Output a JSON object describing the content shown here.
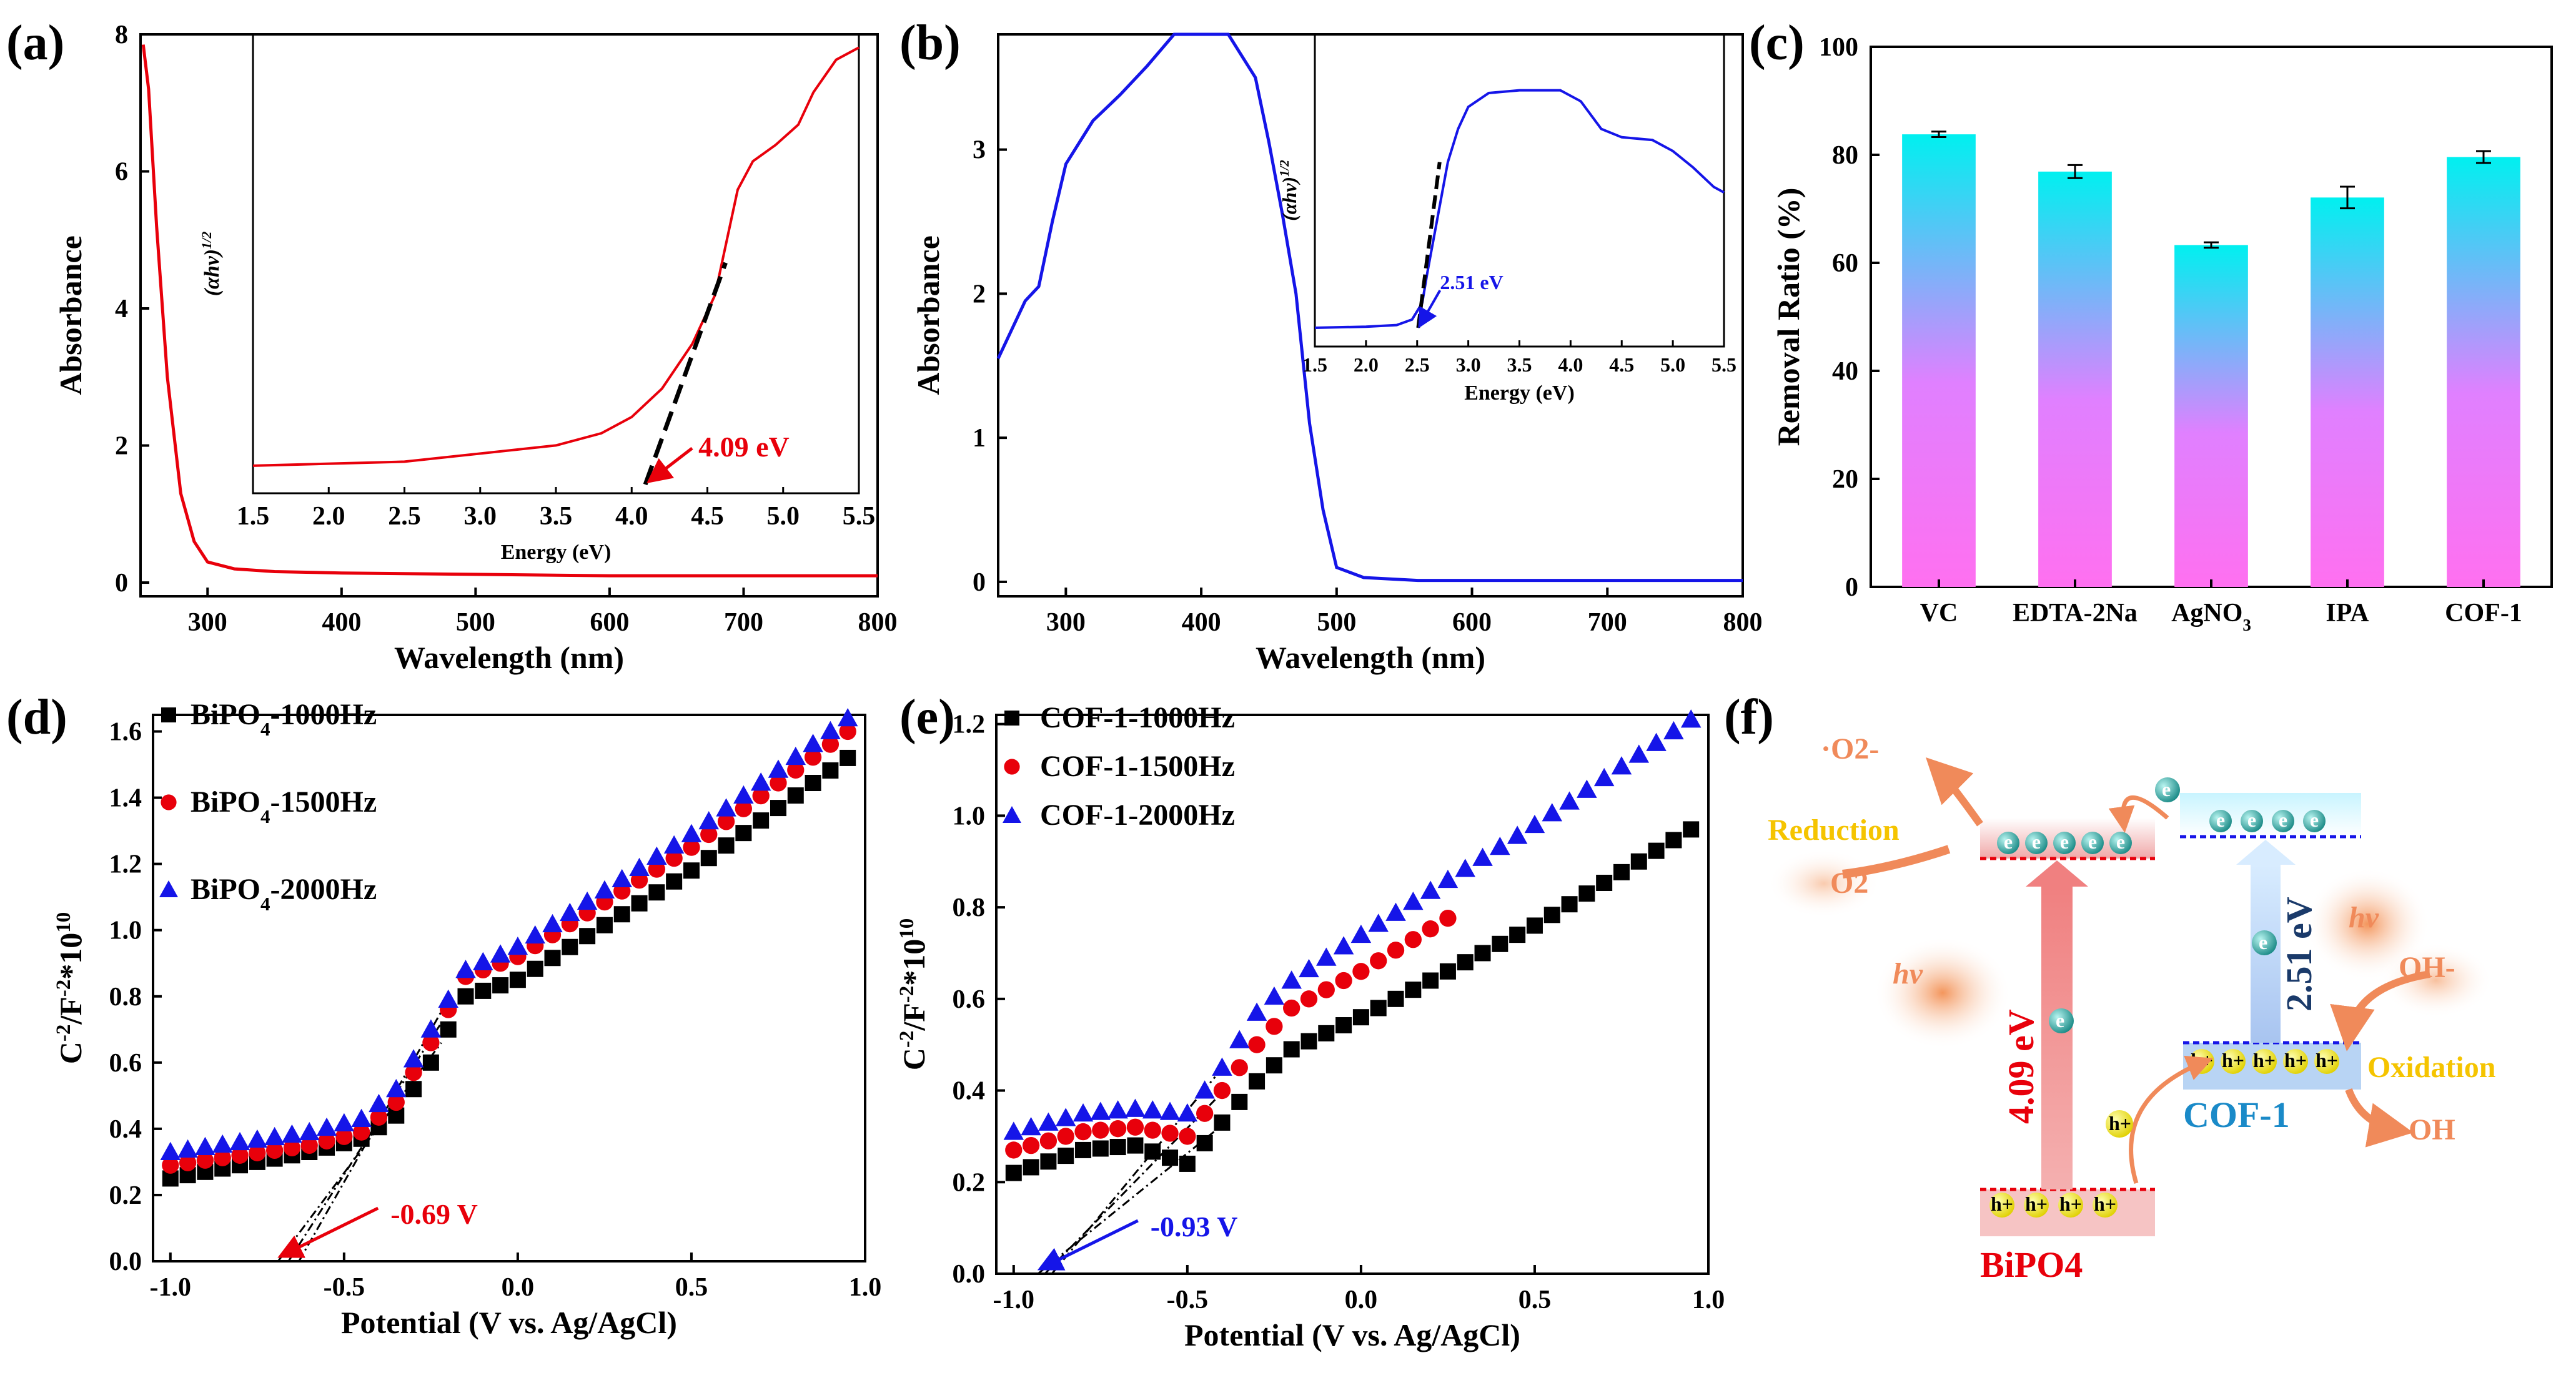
{
  "panel_labels": {
    "a": "(a)",
    "b": "(b)",
    "c": "(c)",
    "d": "(d)",
    "e": "(e)",
    "f": "(f)"
  },
  "chart_data": [
    {
      "id": "a",
      "type": "line",
      "xlabel": "Wavelength (nm)",
      "ylabel": "Absorbance",
      "xlim": [
        250,
        800
      ],
      "ylim": [
        -0.2,
        8
      ],
      "xticks": [
        "300",
        "400",
        "500",
        "600",
        "700",
        "800"
      ],
      "yticks": [
        "0",
        "2",
        "4",
        "6",
        "8"
      ],
      "color": "#e8000b",
      "series": [
        {
          "name": "BiPO4",
          "x": [
            252,
            256,
            262,
            270,
            280,
            290,
            300,
            320,
            350,
            400,
            500,
            600,
            700,
            800
          ],
          "y": [
            7.85,
            7.2,
            5.2,
            3.0,
            1.3,
            0.6,
            0.3,
            0.2,
            0.16,
            0.14,
            0.12,
            0.1,
            0.1,
            0.1
          ]
        }
      ],
      "inset": {
        "xlabel": "Energy (eV)",
        "ylabel": "(αhν)1/2",
        "xlim": [
          1.5,
          5.5
        ],
        "xticks": [
          "1.5",
          "2.0",
          "2.5",
          "3.0",
          "3.5",
          "4.0",
          "4.5",
          "5.0",
          "5.5"
        ],
        "x": [
          1.5,
          2.5,
          3.5,
          3.8,
          4.0,
          4.2,
          4.4,
          4.55,
          4.7,
          4.8,
          4.95,
          5.1,
          5.2,
          5.35,
          5.5
        ],
        "y": [
          0.0,
          0.05,
          0.25,
          0.4,
          0.6,
          0.95,
          1.5,
          2.1,
          3.4,
          3.75,
          3.95,
          4.2,
          4.6,
          5.0,
          5.15
        ],
        "annotation": "4.09 eV"
      }
    },
    {
      "id": "b",
      "type": "line",
      "xlabel": "Wavelength (nm)",
      "ylabel": "Absorbance",
      "xlim": [
        250,
        800
      ],
      "ylim": [
        -0.1,
        3.8
      ],
      "xticks": [
        "300",
        "400",
        "500",
        "600",
        "700",
        "800"
      ],
      "yticks": [
        "0",
        "1",
        "2",
        "3"
      ],
      "color": "#1515e8",
      "series": [
        {
          "name": "COF-1",
          "x": [
            250,
            270,
            280,
            290,
            300,
            320,
            340,
            360,
            380,
            420,
            440,
            450,
            460,
            470,
            480,
            490,
            500,
            520,
            560,
            800
          ],
          "y": [
            1.55,
            1.95,
            2.05,
            2.5,
            2.9,
            3.2,
            3.38,
            3.58,
            3.8,
            3.8,
            3.5,
            3.05,
            2.55,
            2.0,
            1.1,
            0.5,
            0.1,
            0.03,
            0.01,
            0.01
          ]
        }
      ],
      "inset": {
        "xlabel": "Energy (eV)",
        "ylabel": "(αhν)1/2",
        "xlim": [
          1.5,
          5.5
        ],
        "xticks": [
          "1.5",
          "2.0",
          "2.5",
          "3.0",
          "3.5",
          "4.0",
          "4.5",
          "5.0",
          "5.5"
        ],
        "x": [
          1.5,
          2.0,
          2.3,
          2.45,
          2.55,
          2.6,
          2.7,
          2.8,
          2.9,
          3.0,
          3.2,
          3.5,
          3.9,
          4.1,
          4.3,
          4.5,
          4.8,
          5.0,
          5.2,
          5.4,
          5.5
        ],
        "y": [
          0.0,
          0.02,
          0.05,
          0.15,
          0.45,
          1.0,
          2.0,
          3.0,
          3.6,
          4.0,
          4.25,
          4.3,
          4.3,
          4.1,
          3.6,
          3.45,
          3.4,
          3.2,
          2.9,
          2.55,
          2.45
        ],
        "annotation": "2.51 eV"
      }
    },
    {
      "id": "c",
      "type": "bar",
      "xlabel": "",
      "ylabel": "Removal Ratio (%)",
      "ylim": [
        0,
        100
      ],
      "yticks": [
        "0",
        "20",
        "40",
        "60",
        "80",
        "100"
      ],
      "categories": [
        "VC",
        "EDTA-2Na",
        "AgNO3",
        "IPA",
        "COF-1"
      ],
      "values": [
        83.8,
        76.9,
        63.3,
        72.1,
        79.6
      ],
      "errors": [
        0.5,
        1.2,
        0.5,
        2.0,
        1.1
      ],
      "gradient": [
        "#00f0f0",
        "#e080ff",
        "#ff70f0"
      ]
    },
    {
      "id": "d",
      "type": "scatter",
      "xlabel": "Potential (V vs. Ag/AgCl)",
      "ylabel": "C-2/F-2*1010",
      "xlim": [
        -1.05,
        1.0
      ],
      "ylim": [
        0,
        1.65
      ],
      "xticks": [
        "-1.0",
        "-0.5",
        "0.0",
        "0.5",
        "1.0"
      ],
      "yticks": [
        "0.0",
        "0.2",
        "0.4",
        "0.6",
        "0.8",
        "1.0",
        "1.2",
        "1.4",
        "1.6"
      ],
      "series": [
        {
          "name": "BiPO4-1000Hz",
          "marker": "square",
          "color": "#000000",
          "x": [
            -1.0,
            -0.6,
            -0.45,
            -0.35,
            -0.25,
            -0.15,
            0.0,
            0.5,
            0.95
          ],
          "y": [
            0.25,
            0.33,
            0.37,
            0.44,
            0.6,
            0.8,
            0.85,
            1.18,
            1.52
          ]
        },
        {
          "name": "BiPO4-1500Hz",
          "marker": "circle",
          "color": "#e8000b",
          "x": [
            -1.0,
            -0.6,
            -0.45,
            -0.35,
            -0.25,
            -0.15,
            0.0,
            0.5,
            0.95
          ],
          "y": [
            0.29,
            0.35,
            0.39,
            0.48,
            0.66,
            0.86,
            0.92,
            1.25,
            1.6
          ]
        },
        {
          "name": "BiPO4-2000Hz",
          "marker": "triangle",
          "color": "#1515e8",
          "x": [
            -1.0,
            -0.6,
            -0.45,
            -0.35,
            -0.25,
            -0.15,
            0.0,
            0.5,
            0.95
          ],
          "y": [
            0.33,
            0.39,
            0.43,
            0.52,
            0.7,
            0.88,
            0.95,
            1.29,
            1.64
          ]
        }
      ],
      "annotation": "-0.69 V"
    },
    {
      "id": "e",
      "type": "scatter",
      "xlabel": "Potential (V vs. Ag/AgCl)",
      "ylabel": "C-2/F-2*1010",
      "xlim": [
        -1.05,
        1.0
      ],
      "ylim": [
        0,
        1.22
      ],
      "xticks": [
        "-1.0",
        "-0.5",
        "0.0",
        "0.5",
        "1.0"
      ],
      "yticks": [
        "0.0",
        "0.2",
        "0.4",
        "0.6",
        "0.8",
        "1.0",
        "1.2"
      ],
      "series": [
        {
          "name": "COF-1-1000Hz",
          "marker": "square",
          "color": "#000000",
          "x": [
            -1.0,
            -0.8,
            -0.65,
            -0.5,
            -0.4,
            -0.3,
            -0.2,
            0.0,
            0.5,
            0.95
          ],
          "y": [
            0.22,
            0.27,
            0.28,
            0.24,
            0.33,
            0.42,
            0.49,
            0.56,
            0.76,
            0.97
          ]
        },
        {
          "name": "COF-1-1500Hz",
          "marker": "circle",
          "color": "#e8000b",
          "x": [
            -1.0,
            -0.8,
            -0.65,
            -0.5,
            -0.4,
            -0.3,
            -0.2,
            0.0,
            0.28
          ],
          "y": [
            0.27,
            0.31,
            0.32,
            0.3,
            0.4,
            0.5,
            0.58,
            0.66,
            0.79
          ]
        },
        {
          "name": "COF-1-2000Hz",
          "marker": "triangle",
          "color": "#1515e8",
          "x": [
            -1.0,
            -0.8,
            -0.65,
            -0.5,
            -0.4,
            -0.3,
            -0.2,
            0.0,
            0.5,
            0.95
          ],
          "y": [
            0.31,
            0.35,
            0.36,
            0.35,
            0.45,
            0.57,
            0.64,
            0.74,
            0.98,
            1.21
          ]
        }
      ],
      "annotation": "-0.93 V"
    }
  ],
  "diagram_f": {
    "reduction": "Reduction",
    "oxidation": "Oxidation",
    "o2_radical": "·O2-",
    "o2": "O2",
    "oh_minus": "OH-",
    "oh_radical": "·OH",
    "hv": "hν",
    "bipo4_gap": "4.09 eV",
    "cof_gap": "2.51 eV",
    "bipo4": "BiPO4",
    "cof1": "COF-1",
    "e": "e",
    "h": "h+"
  }
}
